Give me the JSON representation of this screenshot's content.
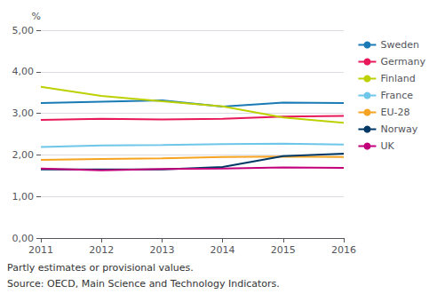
{
  "chart_data": {
    "type": "line",
    "ylabel": "%",
    "x": [
      2011,
      2012,
      2013,
      2014,
      2015,
      2016
    ],
    "xlim": [
      2011,
      2016
    ],
    "xticks": [
      2011,
      2012,
      2013,
      2014,
      2015,
      2016
    ],
    "series": [
      {
        "name": "Sweden",
        "color": "#1a7ab5",
        "values": [
          3.25,
          3.28,
          3.31,
          3.16,
          3.26,
          3.25
        ]
      },
      {
        "name": "Germany",
        "color": "#e8185a",
        "values": [
          2.84,
          2.87,
          2.85,
          2.87,
          2.92,
          2.94
        ]
      },
      {
        "name": "Finland",
        "color": "#bdd000",
        "values": [
          3.64,
          3.42,
          3.29,
          3.17,
          2.9,
          2.77
        ]
      },
      {
        "name": "France",
        "color": "#6ec6e8",
        "values": [
          2.19,
          2.23,
          2.24,
          2.26,
          2.27,
          2.25
        ]
      },
      {
        "name": "EU-28",
        "color": "#f5a320",
        "values": [
          1.88,
          1.9,
          1.92,
          1.95,
          1.96,
          1.95
        ]
      },
      {
        "name": "Norway",
        "color": "#003865",
        "values": [
          1.65,
          1.65,
          1.65,
          1.71,
          1.97,
          2.03
        ]
      },
      {
        "name": "UK",
        "color": "#c2007a",
        "values": [
          1.67,
          1.63,
          1.66,
          1.67,
          1.7,
          1.69
        ]
      }
    ],
    "ylim": [
      0.0,
      5.0
    ],
    "yticks": [
      {
        "value": 0.0,
        "label": "0,00"
      },
      {
        "value": 1.0,
        "label": "1,00"
      },
      {
        "value": 2.0,
        "label": "2,00"
      },
      {
        "value": 3.0,
        "label": "3,00"
      },
      {
        "value": 4.0,
        "label": "4,00"
      },
      {
        "value": 5.0,
        "label": "5,00"
      }
    ],
    "grid": true,
    "legend": "right",
    "annotations": [
      "Partly estimates or provisional values.",
      "Source: OECD, Main Science and Technology Indicators."
    ]
  }
}
